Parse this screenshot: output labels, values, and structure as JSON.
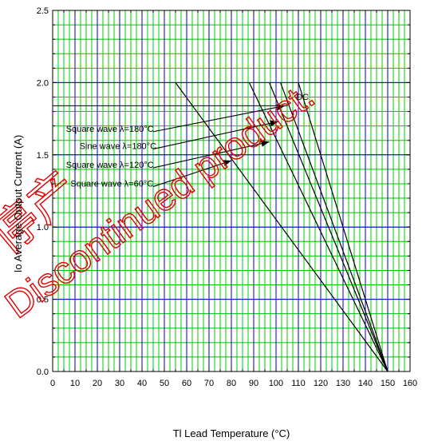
{
  "chart_data": {
    "type": "line",
    "xlabel": "Tl    Lead Temperature    (°C)",
    "ylabel": "Io    Average Output Current    (A)",
    "xlim": [
      0,
      160
    ],
    "ylim": [
      0,
      2.5
    ],
    "xticks": [
      "0",
      "10",
      "20",
      "30",
      "40",
      "50",
      "60",
      "70",
      "80",
      "90",
      "100",
      "110",
      "120",
      "130",
      "140",
      "150",
      "160"
    ],
    "yticks": [
      "0.0",
      "0.5",
      "1.0",
      "1.5",
      "2.0",
      "2.5"
    ],
    "grid": true,
    "series": [
      {
        "name": "DC",
        "x": [
          110,
          150
        ],
        "y": [
          2.0,
          0.0
        ]
      },
      {
        "name": "Sine wave λ=180°C",
        "x": [
          102,
          150
        ],
        "y": [
          2.0,
          0.0
        ]
      },
      {
        "name": "Square wave λ=180°C",
        "x": [
          97,
          150
        ],
        "y": [
          2.0,
          0.0
        ]
      },
      {
        "name": "Square wave λ=120°C",
        "x": [
          88,
          150
        ],
        "y": [
          2.0,
          0.0
        ]
      },
      {
        "name": "Square wave λ=60°C",
        "x": [
          55,
          150
        ],
        "y": [
          2.0,
          0.0
        ]
      }
    ],
    "reference_line": {
      "y": 1.84,
      "x_to": 105
    },
    "annotations": [
      {
        "text": "DC",
        "x": 109,
        "y": 1.88
      },
      {
        "text": "Square wave λ=180°C",
        "x": 6,
        "y": 1.66
      },
      {
        "text": "Sine wave λ=180°C",
        "x": 12,
        "y": 1.54
      },
      {
        "text": "Square wave λ=120°C",
        "x": 6,
        "y": 1.41
      },
      {
        "text": "Square wave λ=60°C",
        "x": 8,
        "y": 1.28
      }
    ],
    "arrows": [
      {
        "from": [
          45,
          1.66
        ],
        "to": [
          104,
          1.84
        ]
      },
      {
        "from": [
          45,
          1.54
        ],
        "to": [
          101,
          1.73
        ]
      },
      {
        "from": [
          45,
          1.41
        ],
        "to": [
          97,
          1.59
        ]
      },
      {
        "from": [
          45,
          1.28
        ],
        "to": [
          80,
          1.46
        ]
      }
    ],
    "colors": {
      "grid_fine": "#00c800",
      "grid_major": "#0000c8",
      "curve": "#000000",
      "watermark": "#e00000"
    }
  },
  "watermark": {
    "line1": "停产",
    "line2": "Discontinued product."
  }
}
